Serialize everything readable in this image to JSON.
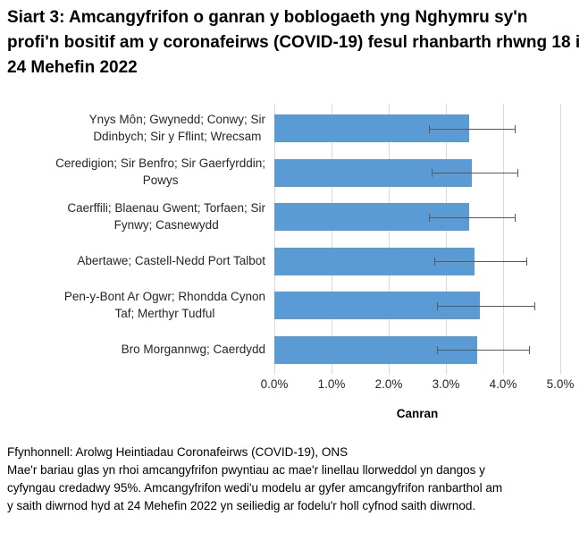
{
  "title": "Siart 3: Amcangyfrifon o ganran y boblogaeth yng Nghymru sy'n profi'n bositif am y coronafeirws (COVID-19) fesul rhanbarth rhwng 18 i 24 Mehefin 2022",
  "chart_data": {
    "type": "bar",
    "orientation": "horizontal",
    "title": "Siart 3: Amcangyfrifon o ganran y boblogaeth yng Nghymru sy'n profi'n bositif am y coronafeirws (COVID-19) fesul rhanbarth rhwng 18 i 24 Mehefin 2022",
    "categories": [
      "Ynys Môn; Gwynedd; Conwy; Sir\nDdinbych; Sir y Fflint; Wrecsam",
      "Ceredigion; Sir Benfro; Sir Gaerfyrddin;\nPowys",
      "Caerffili; Blaenau Gwent; Torfaen; Sir\nFynwy; Casnewydd",
      "Abertawe; Castell-Nedd Port Talbot",
      "Pen-y-Bont Ar Ogwr; Rhondda Cynon\nTaf; Merthyr Tudful",
      "Bro Morgannwg; Caerdydd"
    ],
    "values": [
      3.4,
      3.45,
      3.4,
      3.5,
      3.6,
      3.55
    ],
    "ci_low": [
      2.7,
      2.75,
      2.7,
      2.8,
      2.85,
      2.85
    ],
    "ci_high": [
      4.2,
      4.25,
      4.2,
      4.4,
      4.55,
      4.45
    ],
    "xlabel": "Canran",
    "ylabel": "",
    "x_tick_labels": [
      "0.0%",
      "1.0%",
      "2.0%",
      "3.0%",
      "4.0%",
      "5.0%"
    ],
    "xlim": [
      0,
      5
    ],
    "grid": "vertical",
    "legend": "none",
    "bar_color": "#5B9BD5",
    "errorbar_color": "#595959",
    "gridline_color": "#D9D9D9",
    "errorbar_meaning": "cyfyngau credadwy 95%"
  },
  "footer": {
    "source": "Ffynhonnell: Arolwg Heintiadau Coronafeirws (COVID-19), ONS",
    "note": "Mae'r bariau glas yn rhoi amcangyfrifon pwyntiau ac mae'r linellau llorweddol yn dangos y\ncyfyngau credadwy 95%. Amcangyfrifon wedi'u modelu ar gyfer amcangyfrifon ranbarthol am\ny saith diwrnod hyd at 24 Mehefin 2022 yn seiliedig ar fodelu'r holl cyfnod saith diwrnod."
  }
}
